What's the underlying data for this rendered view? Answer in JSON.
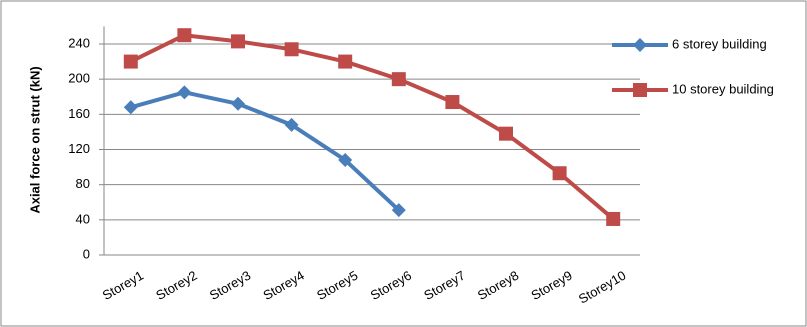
{
  "chart_data": {
    "type": "line",
    "categories": [
      "Storey1",
      "Storey2",
      "Storey3",
      "Storey4",
      "Storey5",
      "Storey6",
      "Storey7",
      "Storey8",
      "Storey9",
      "Storey10"
    ],
    "series": [
      {
        "name": "6 storey building",
        "color": "#4a7ebb",
        "marker": "diamond",
        "values": [
          168,
          185,
          172,
          148,
          108,
          51,
          null,
          null,
          null,
          null
        ]
      },
      {
        "name": "10 storey building",
        "color": "#be4b48",
        "marker": "square",
        "values": [
          220,
          250,
          243,
          234,
          220,
          200,
          174,
          138,
          93,
          41
        ]
      }
    ],
    "y_label": "Axial force on strut (kN)",
    "ylim": [
      0,
      260
    ],
    "yticks": [
      0,
      40,
      80,
      120,
      160,
      200,
      240
    ],
    "grid": true,
    "legend": "right"
  }
}
